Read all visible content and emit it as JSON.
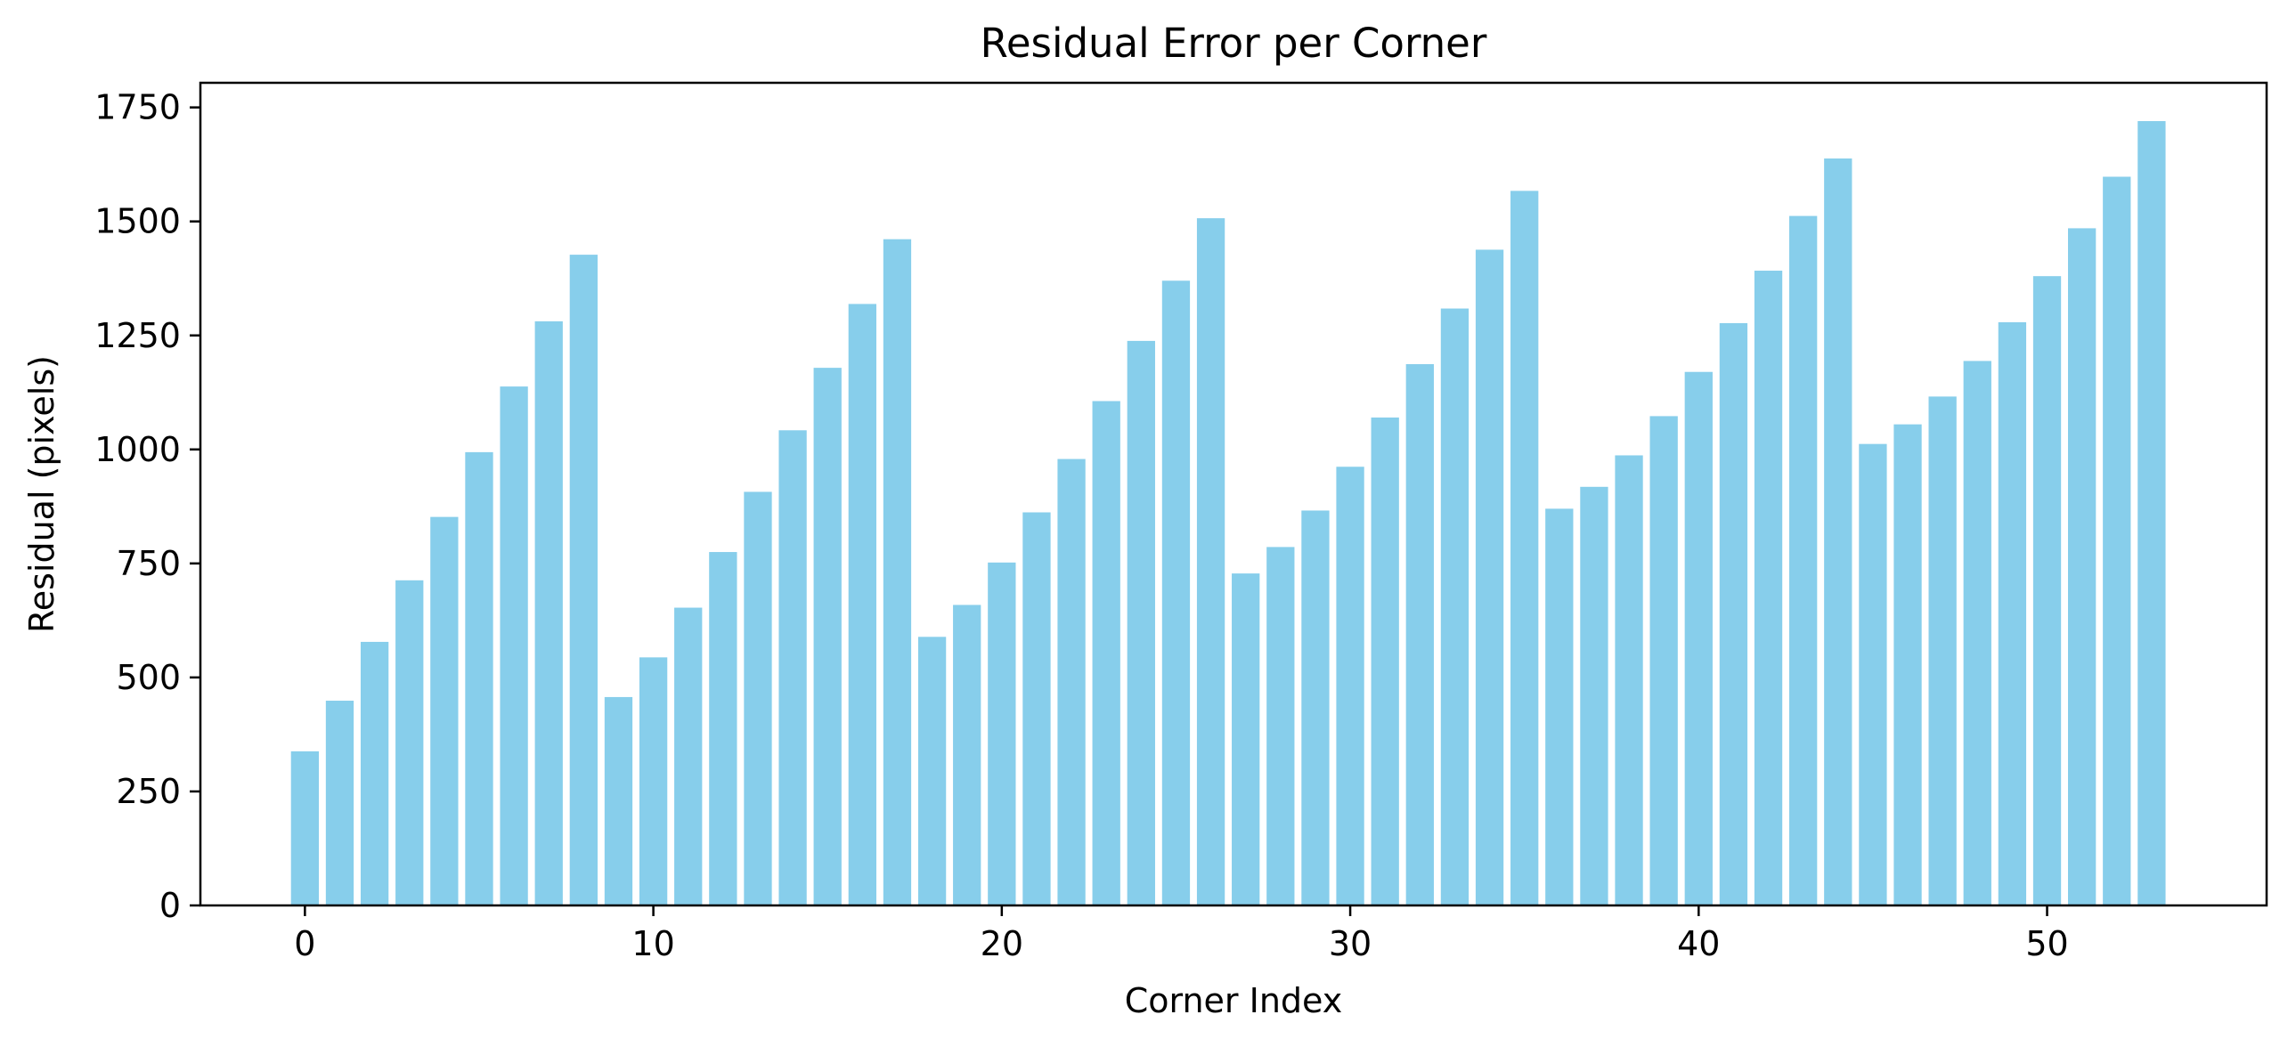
{
  "chart_data": {
    "type": "bar",
    "title": "Residual Error per Corner",
    "xlabel": "Corner Index",
    "ylabel": "Residual (pixels)",
    "xlim": [
      -3,
      56.3
    ],
    "ylim": [
      0,
      1804
    ],
    "xticks": [
      0,
      10,
      20,
      30,
      40,
      50
    ],
    "yticks": [
      0,
      250,
      500,
      750,
      1000,
      1250,
      1500,
      1750
    ],
    "grid": false,
    "legend": "none",
    "bar_color": "#87CEEB",
    "x": [
      0,
      1,
      2,
      3,
      4,
      5,
      6,
      7,
      8,
      9,
      10,
      11,
      12,
      13,
      14,
      15,
      16,
      17,
      18,
      19,
      20,
      21,
      22,
      23,
      24,
      25,
      26,
      27,
      28,
      29,
      30,
      31,
      32,
      33,
      34,
      35,
      36,
      37,
      38,
      39,
      40,
      41,
      42,
      43,
      44,
      45,
      46,
      47,
      48,
      49,
      50,
      51,
      52,
      53
    ],
    "values": [
      338,
      449,
      578,
      713,
      852,
      994,
      1138,
      1281,
      1427,
      457,
      544,
      653,
      775,
      907,
      1042,
      1179,
      1319,
      1461,
      589,
      659,
      752,
      862,
      979,
      1106,
      1238,
      1370,
      1507,
      728,
      786,
      866,
      962,
      1070,
      1187,
      1309,
      1438,
      1567,
      870,
      918,
      987,
      1073,
      1170,
      1277,
      1392,
      1512,
      1638,
      1012,
      1055,
      1116,
      1194,
      1279,
      1380,
      1485,
      1598,
      1720
    ]
  }
}
